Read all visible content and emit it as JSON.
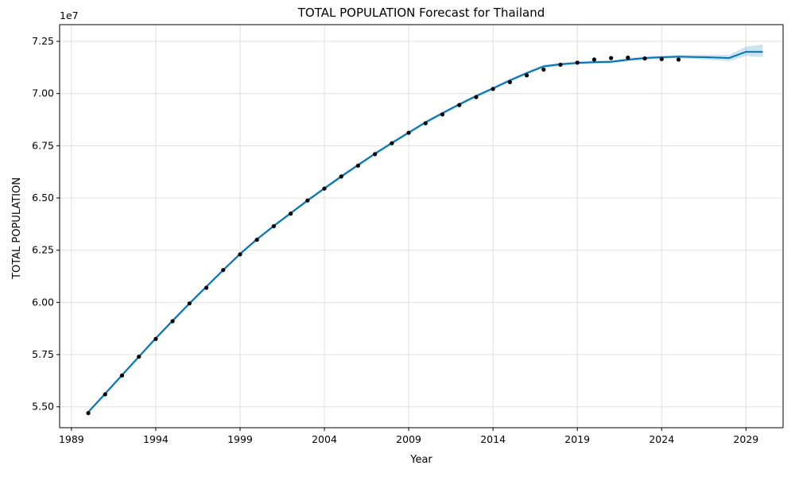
{
  "chart_data": {
    "type": "line",
    "title": "TOTAL POPULATION Forecast for Thailand",
    "xlabel": "Year",
    "ylabel": "TOTAL POPULATION",
    "y_offset_label": "1e7",
    "xlim": [
      1988.3,
      2031.2
    ],
    "ylim": [
      5.4,
      7.33
    ],
    "x_ticks": [
      1989,
      1994,
      1999,
      2004,
      2009,
      2014,
      2019,
      2024,
      2029
    ],
    "y_ticks": [
      5.5,
      5.75,
      6.0,
      6.25,
      6.5,
      6.75,
      7.0,
      7.25
    ],
    "y_tick_labels": [
      "5.50",
      "5.75",
      "6.00",
      "6.25",
      "6.50",
      "6.75",
      "7.00",
      "7.25"
    ],
    "grid": true,
    "colors": {
      "forecast_line": "#0072b2",
      "uncertainty_band": "#0072b2",
      "observed_points": "#000000",
      "grid": "#e0e0e0"
    },
    "series": [
      {
        "kind": "observed_points",
        "x": [
          1990,
          1991,
          1992,
          1993,
          1994,
          1995,
          1996,
          1997,
          1998,
          1999,
          2000,
          2001,
          2002,
          2003,
          2004,
          2005,
          2006,
          2007,
          2008,
          2009,
          2010,
          2011,
          2012,
          2013,
          2014,
          2015,
          2016,
          2017,
          2018,
          2019,
          2020,
          2021,
          2022,
          2023,
          2024,
          2025
        ],
        "values": [
          5.47,
          5.56,
          5.65,
          5.74,
          5.825,
          5.91,
          5.995,
          6.07,
          6.155,
          6.23,
          6.3,
          6.365,
          6.425,
          6.488,
          6.545,
          6.603,
          6.655,
          6.71,
          6.762,
          6.812,
          6.858,
          6.9,
          6.945,
          6.983,
          7.022,
          7.055,
          7.087,
          7.115,
          7.138,
          7.148,
          7.163,
          7.17,
          7.172,
          7.168,
          7.165,
          7.163
        ]
      },
      {
        "kind": "forecast_line",
        "x": [
          1990,
          1991,
          1992,
          1993,
          1994,
          1995,
          1996,
          1997,
          1998,
          1999,
          2000,
          2001,
          2002,
          2003,
          2004,
          2005,
          2006,
          2007,
          2008,
          2009,
          2010,
          2011,
          2012,
          2013,
          2014,
          2015,
          2016,
          2017,
          2018,
          2019,
          2020,
          2021,
          2022,
          2023,
          2024,
          2025,
          2026,
          2027,
          2028,
          2029,
          2030
        ],
        "values": [
          5.475,
          5.563,
          5.652,
          5.74,
          5.828,
          5.912,
          5.995,
          6.075,
          6.155,
          6.232,
          6.302,
          6.366,
          6.427,
          6.488,
          6.546,
          6.603,
          6.658,
          6.712,
          6.763,
          6.813,
          6.862,
          6.906,
          6.948,
          6.988,
          7.025,
          7.063,
          7.098,
          7.13,
          7.14,
          7.147,
          7.15,
          7.152,
          7.162,
          7.17,
          7.174,
          7.177,
          7.175,
          7.173,
          7.17,
          7.2,
          7.2
        ],
        "lower": [
          5.467,
          5.555,
          5.644,
          5.732,
          5.82,
          5.904,
          5.987,
          6.067,
          6.147,
          6.224,
          6.294,
          6.358,
          6.419,
          6.48,
          6.538,
          6.595,
          6.65,
          6.704,
          6.755,
          6.805,
          6.854,
          6.898,
          6.94,
          6.98,
          7.017,
          7.055,
          7.09,
          7.122,
          7.132,
          7.139,
          7.142,
          7.144,
          7.154,
          7.162,
          7.166,
          7.169,
          7.165,
          7.161,
          7.155,
          7.18,
          7.175
        ],
        "upper": [
          5.483,
          5.571,
          5.66,
          5.748,
          5.836,
          5.92,
          6.003,
          6.083,
          6.163,
          6.24,
          6.31,
          6.374,
          6.435,
          6.496,
          6.554,
          6.611,
          6.666,
          6.72,
          6.771,
          6.821,
          6.87,
          6.914,
          6.956,
          6.996,
          7.033,
          7.071,
          7.106,
          7.138,
          7.148,
          7.155,
          7.158,
          7.16,
          7.17,
          7.178,
          7.182,
          7.185,
          7.185,
          7.185,
          7.185,
          7.225,
          7.235
        ]
      }
    ]
  }
}
